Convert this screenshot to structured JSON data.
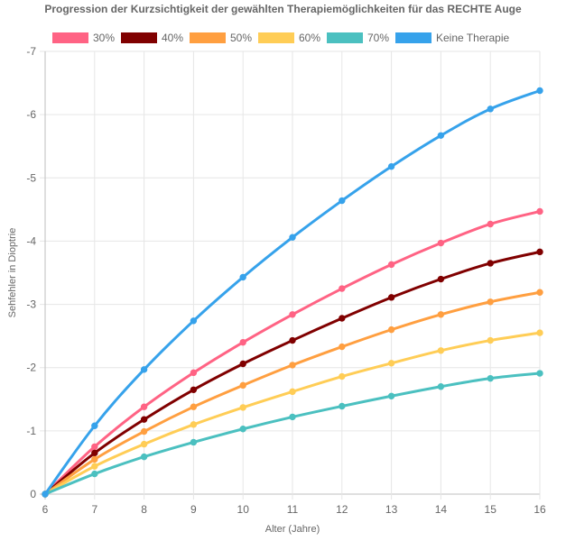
{
  "chart_data": {
    "type": "line",
    "title": "Progression der Kurzsichtigkeit der gewählten Therapiemöglichkeiten für das RECHTE Auge",
    "xlabel": "Alter (Jahre)",
    "ylabel": "Sehfehler in Dioptrie",
    "x": [
      6,
      7,
      8,
      9,
      10,
      11,
      12,
      13,
      14,
      15,
      16
    ],
    "xlim": [
      6,
      16
    ],
    "ylim": [
      0,
      -7
    ],
    "y_axis_reversed": true,
    "y_ticks": [
      0,
      -1,
      -2,
      -3,
      -4,
      -5,
      -6,
      -7
    ],
    "grid": true,
    "legend_position": "top",
    "series": [
      {
        "name": "30%",
        "color": "#ff6384",
        "values": [
          0,
          -0.75,
          -1.38,
          -1.92,
          -2.4,
          -2.84,
          -3.25,
          -3.63,
          -3.97,
          -4.27,
          -4.47
        ]
      },
      {
        "name": "40%",
        "color": "#800000",
        "values": [
          0,
          -0.65,
          -1.18,
          -1.65,
          -2.06,
          -2.43,
          -2.78,
          -3.11,
          -3.4,
          -3.65,
          -3.83
        ]
      },
      {
        "name": "50%",
        "color": "#ff9f40",
        "values": [
          0,
          -0.55,
          -0.99,
          -1.38,
          -1.72,
          -2.04,
          -2.33,
          -2.6,
          -2.84,
          -3.04,
          -3.19
        ]
      },
      {
        "name": "60%",
        "color": "#ffcd56",
        "values": [
          0,
          -0.44,
          -0.79,
          -1.1,
          -1.37,
          -1.62,
          -1.86,
          -2.07,
          -2.27,
          -2.43,
          -2.55
        ]
      },
      {
        "name": "70%",
        "color": "#4bc0c0",
        "values": [
          0,
          -0.32,
          -0.59,
          -0.82,
          -1.03,
          -1.22,
          -1.39,
          -1.55,
          -1.7,
          -1.83,
          -1.91
        ]
      },
      {
        "name": "Keine Therapie",
        "color": "#36a2eb",
        "values": [
          0,
          -1.08,
          -1.97,
          -2.74,
          -3.43,
          -4.06,
          -4.64,
          -5.18,
          -5.67,
          -6.09,
          -6.38
        ]
      }
    ]
  }
}
